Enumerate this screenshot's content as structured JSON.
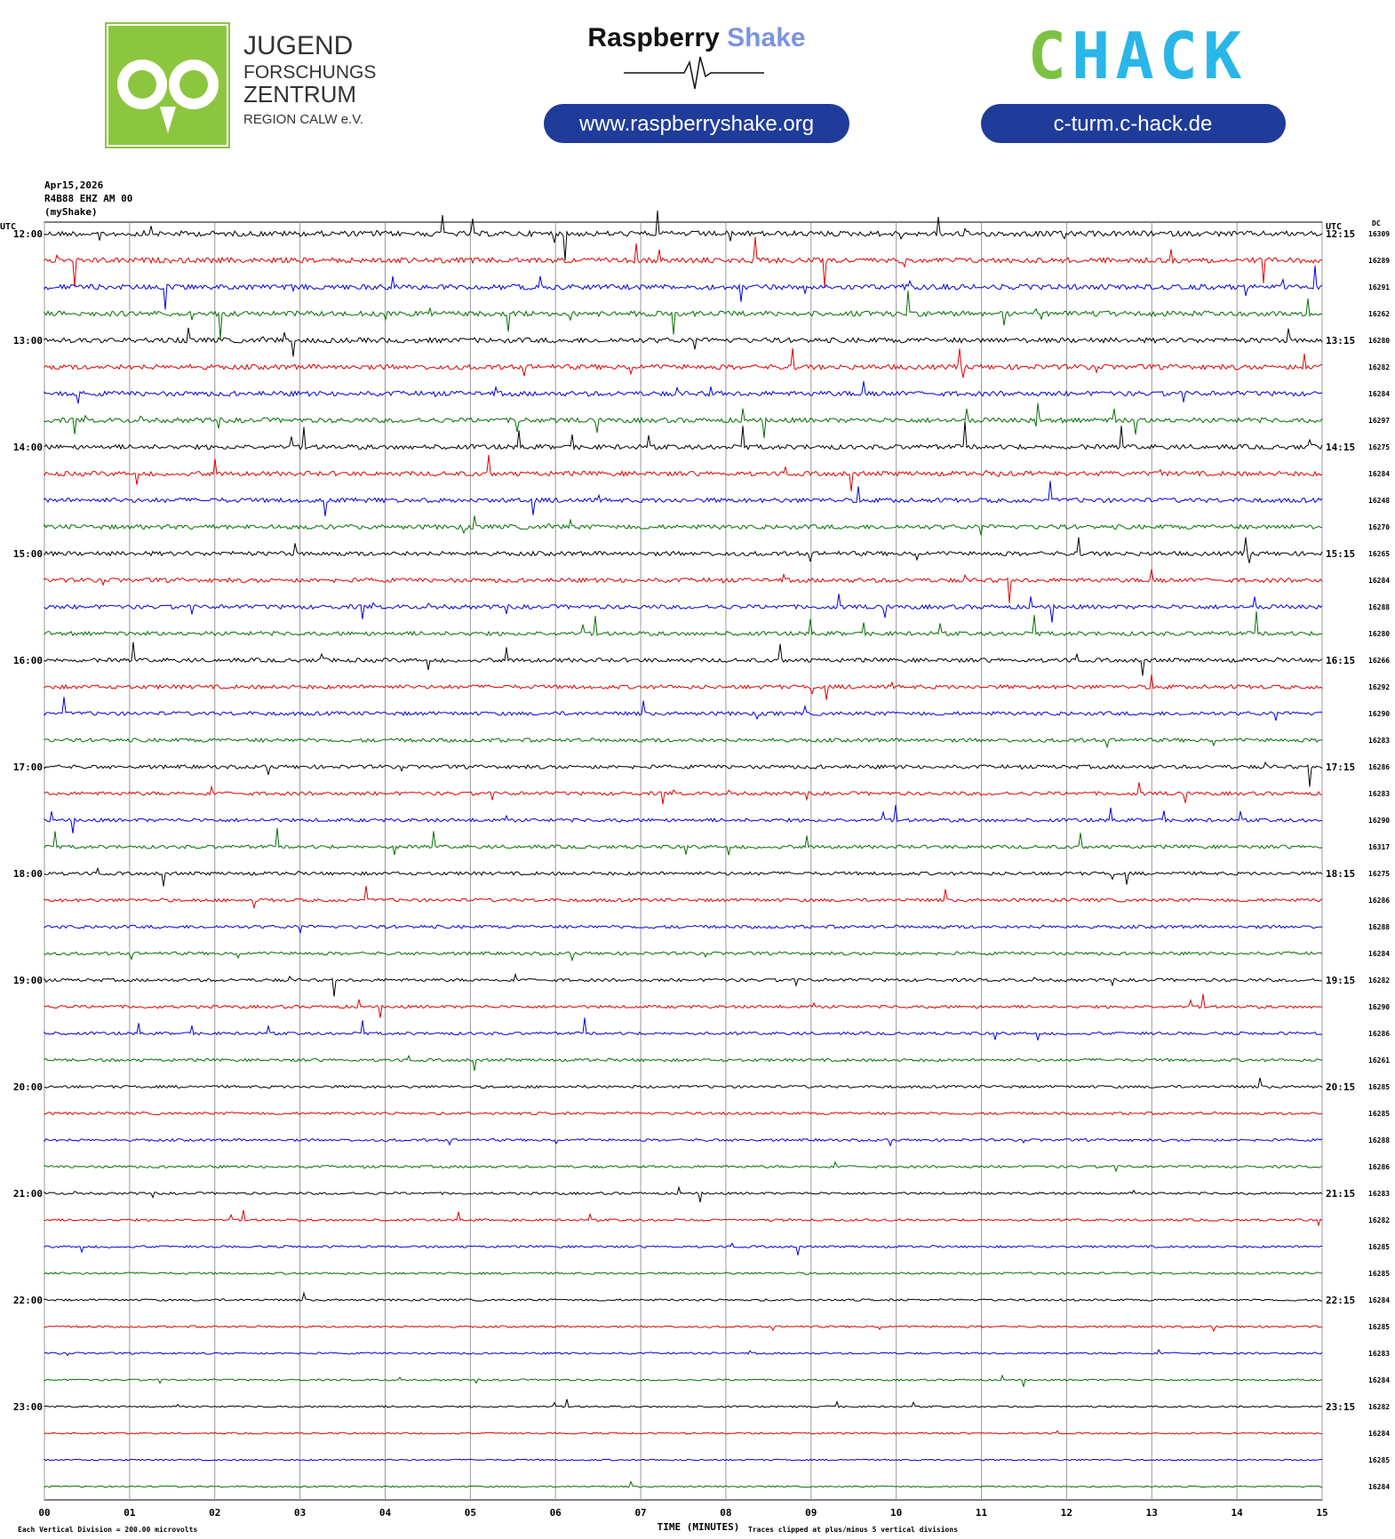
{
  "header": {
    "jfz": [
      "JUGEND",
      "FORSCHUNGS",
      "ZENTRUM",
      "REGION CALW e.V."
    ],
    "rs_name": "Raspberry",
    "rs_shake": "Shake",
    "rs_url": "www.raspberryshake.org",
    "chack_c": "C",
    "chack_rest": "HACK",
    "chack_url": "c-turm.c-hack.de"
  },
  "meta": {
    "date": "Apr15,2026",
    "station": "R4B88 EHZ AM 00",
    "source": "(myShake)"
  },
  "chart_data": {
    "type": "helicorder",
    "left_title": "UTC",
    "right_title": "UTC",
    "dc_title": "DC",
    "colors": [
      "#000000",
      "#e00000",
      "#0000e0",
      "#007000"
    ],
    "xlim": [
      0,
      15
    ],
    "xticks": [
      {
        "value": 0,
        "label": "00"
      },
      {
        "value": 1,
        "label": "01"
      },
      {
        "value": 2,
        "label": "02"
      },
      {
        "value": 3,
        "label": "03"
      },
      {
        "value": 4,
        "label": "04"
      },
      {
        "value": 5,
        "label": "05"
      },
      {
        "value": 6,
        "label": "06"
      },
      {
        "value": 7,
        "label": "07"
      },
      {
        "value": 8,
        "label": "08"
      },
      {
        "value": 9,
        "label": "09"
      },
      {
        "value": 10,
        "label": "10"
      },
      {
        "value": 11,
        "label": "11"
      },
      {
        "value": 12,
        "label": "12"
      },
      {
        "value": 13,
        "label": "13"
      },
      {
        "value": 14,
        "label": "14"
      },
      {
        "value": 15,
        "label": "15"
      }
    ],
    "left_times": [
      "12:00",
      "13:00",
      "14:00",
      "15:00",
      "16:00",
      "17:00",
      "18:00",
      "19:00",
      "20:00",
      "21:00",
      "22:00",
      "23:00"
    ],
    "right_times": [
      "12:15",
      "13:15",
      "14:15",
      "15:15",
      "16:15",
      "17:15",
      "18:15",
      "19:15",
      "20:15",
      "21:15",
      "22:15",
      "23:15"
    ],
    "dc": [
      16309,
      16289,
      16291,
      16262,
      16280,
      16282,
      16284,
      16297,
      16275,
      16284,
      16248,
      16270,
      16265,
      16284,
      16288,
      16280,
      16266,
      16292,
      16290,
      16283,
      16286,
      16283,
      16290,
      16317,
      16275,
      16286,
      16288,
      16284,
      16282,
      16290,
      16286,
      16261,
      16285,
      16285,
      16288,
      16286,
      16283,
      16282,
      16285,
      16285,
      16284,
      16285,
      16283,
      16284,
      16282,
      16284,
      16285,
      16284
    ],
    "x_label": "TIME (MINUTES)",
    "scale_note": "Each Vertical Division =  200.00 microvolts",
    "clip_note": "Traces clipped at plus/minus 5 vertical divisions"
  }
}
